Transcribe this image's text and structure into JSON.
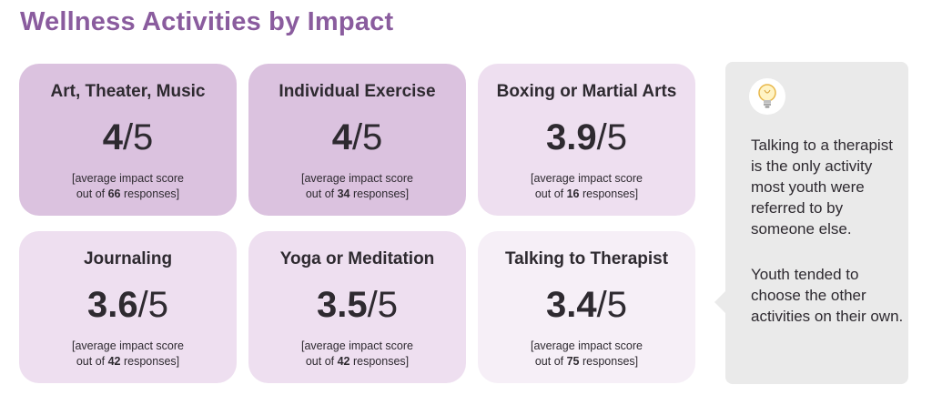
{
  "title": "Wellness Activities by Impact",
  "cards": [
    {
      "name": "Art, Theater, Music",
      "score": "4",
      "suffix": "/5",
      "note_prefix": "[average impact score",
      "note_mid": "out of ",
      "responses": "66",
      "note_suffix": " responses]",
      "bg": "#dbc2df"
    },
    {
      "name": "Individual Exercise",
      "score": "4",
      "suffix": "/5",
      "note_prefix": "[average impact score",
      "note_mid": "out of ",
      "responses": "34",
      "note_suffix": " responses]",
      "bg": "#dbc2df"
    },
    {
      "name": "Boxing or Martial Arts",
      "score": "3.9",
      "suffix": "/5",
      "note_prefix": "[average impact score",
      "note_mid": "out of ",
      "responses": "16",
      "note_suffix": " responses]",
      "bg": "#eedff0"
    },
    {
      "name": "Journaling",
      "score": "3.6",
      "suffix": "/5",
      "note_prefix": "[average impact score",
      "note_mid": "out of ",
      "responses": "42",
      "note_suffix": " responses]",
      "bg": "#eedff0"
    },
    {
      "name": "Yoga or Meditation",
      "score": "3.5",
      "suffix": "/5",
      "note_prefix": "[average impact score",
      "note_mid": "out of ",
      "responses": "42",
      "note_suffix": " responses]",
      "bg": "#eedff0"
    },
    {
      "name": "Talking to Therapist",
      "score": "3.4",
      "suffix": "/5",
      "note_prefix": "[average impact score",
      "note_mid": "out of ",
      "responses": "75",
      "note_suffix": " responses]",
      "bg": "#f6eff7"
    }
  ],
  "callout": {
    "icon": "lightbulb-icon",
    "paragraph1": "Talking to a therapist is the only activity most youth were referred to by someone else.",
    "paragraph2": "Youth tended to choose the other activities on their own."
  }
}
